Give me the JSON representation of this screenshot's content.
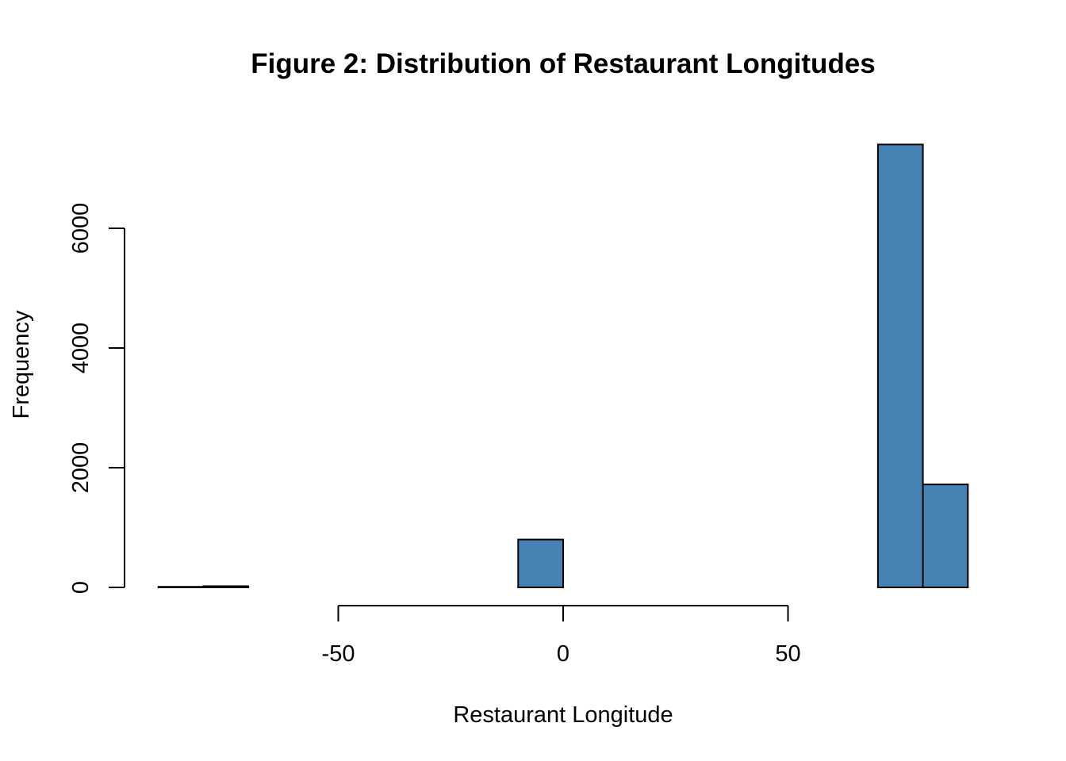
{
  "chart_data": {
    "type": "bar",
    "title": "Figure 2: Distribution of Restaurant Longitudes",
    "xlabel": "Restaurant Longitude",
    "ylabel": "Frequency",
    "bar_color": "#4682B4",
    "x_ticks": [
      -50,
      0,
      50
    ],
    "y_ticks": [
      0,
      2000,
      4000,
      6000
    ],
    "xlim": [
      -90,
      90
    ],
    "ylim": [
      0,
      7500
    ],
    "bins": [
      {
        "start": -90,
        "end": -80,
        "count": 10
      },
      {
        "start": -80,
        "end": -70,
        "count": 20
      },
      {
        "start": -70,
        "end": -60,
        "count": 0
      },
      {
        "start": -60,
        "end": -50,
        "count": 0
      },
      {
        "start": -50,
        "end": -40,
        "count": 0
      },
      {
        "start": -40,
        "end": -30,
        "count": 0
      },
      {
        "start": -30,
        "end": -20,
        "count": 0
      },
      {
        "start": -20,
        "end": -10,
        "count": 0
      },
      {
        "start": -10,
        "end": 0,
        "count": 800
      },
      {
        "start": 0,
        "end": 10,
        "count": 0
      },
      {
        "start": 10,
        "end": 20,
        "count": 0
      },
      {
        "start": 20,
        "end": 30,
        "count": 0
      },
      {
        "start": 30,
        "end": 40,
        "count": 0
      },
      {
        "start": 40,
        "end": 50,
        "count": 0
      },
      {
        "start": 50,
        "end": 60,
        "count": 0
      },
      {
        "start": 60,
        "end": 70,
        "count": 0
      },
      {
        "start": 70,
        "end": 80,
        "count": 7400
      },
      {
        "start": 80,
        "end": 90,
        "count": 1720
      }
    ]
  }
}
